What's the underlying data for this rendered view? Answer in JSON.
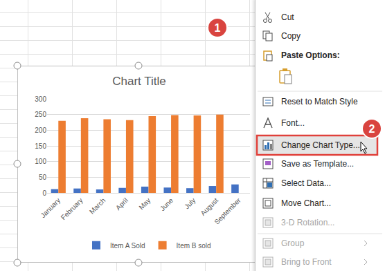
{
  "chart_data": {
    "type": "bar",
    "title": "Chart Title",
    "categories": [
      "January",
      "February",
      "March",
      "April",
      "May",
      "June",
      "July",
      "August",
      "September"
    ],
    "series": [
      {
        "name": "Item A Sold",
        "color": "#4472C4",
        "values": [
          12,
          14,
          11,
          16,
          20,
          17,
          15,
          22,
          27
        ]
      },
      {
        "name": "Item B sold",
        "color": "#ED7D31",
        "values": [
          230,
          238,
          235,
          232,
          245,
          248,
          247,
          250,
          null
        ]
      }
    ],
    "ylim": [
      0,
      300
    ],
    "yticks": [
      0,
      50,
      100,
      150,
      200,
      250,
      300
    ],
    "grid": true,
    "legend": "bottom"
  },
  "context_menu": {
    "items": [
      {
        "label": "Cut"
      },
      {
        "label": "Copy"
      },
      {
        "label": "Paste Options:"
      },
      {
        "label": "Reset to Match Style"
      },
      {
        "label": "Font..."
      },
      {
        "label": "Change Chart Type...",
        "highlighted": true
      },
      {
        "label": "Save as Template..."
      },
      {
        "label": "Select Data..."
      },
      {
        "label": "Move Chart..."
      },
      {
        "label": "3-D Rotation...",
        "disabled": true
      },
      {
        "label": "Group",
        "disabled": true,
        "submenu": true
      },
      {
        "label": "Bring to Front",
        "disabled": true,
        "submenu": true
      }
    ]
  },
  "callouts": [
    {
      "label": "1"
    },
    {
      "label": "2"
    }
  ]
}
